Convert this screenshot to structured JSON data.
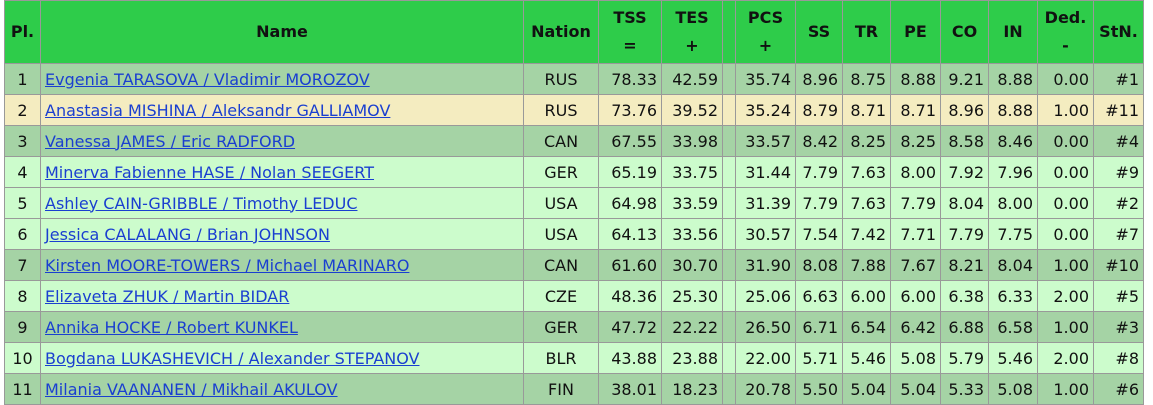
{
  "table": {
    "columns": [
      [
        "Pl."
      ],
      [
        "Name"
      ],
      [
        "Nation"
      ],
      [
        "TSS",
        "="
      ],
      [
        "TES",
        "+"
      ],
      [
        "PCS",
        "+"
      ],
      [
        "SS"
      ],
      [
        "TR"
      ],
      [
        "PE"
      ],
      [
        "CO"
      ],
      [
        "IN"
      ],
      [
        "Ded.",
        "-"
      ],
      [
        "StN."
      ]
    ],
    "rows": [
      [
        "1",
        "Evgenia TARASOVA / Vladimir MOROZOV",
        "RUS",
        "78.33",
        "42.59",
        "35.74",
        "8.96",
        "8.75",
        "8.88",
        "9.21",
        "8.88",
        "0.00",
        "#1"
      ],
      [
        "2",
        "Anastasia MISHINA / Aleksandr GALLIAMOV",
        "RUS",
        "73.76",
        "39.52",
        "35.24",
        "8.79",
        "8.71",
        "8.71",
        "8.96",
        "8.88",
        "1.00",
        "#11"
      ],
      [
        "3",
        "Vanessa JAMES / Eric RADFORD",
        "CAN",
        "67.55",
        "33.98",
        "33.57",
        "8.42",
        "8.25",
        "8.25",
        "8.58",
        "8.46",
        "0.00",
        "#4"
      ],
      [
        "4",
        "Minerva Fabienne HASE / Nolan SEEGERT",
        "GER",
        "65.19",
        "33.75",
        "31.44",
        "7.79",
        "7.63",
        "8.00",
        "7.92",
        "7.96",
        "0.00",
        "#9"
      ],
      [
        "5",
        "Ashley CAIN-GRIBBLE / Timothy LEDUC",
        "USA",
        "64.98",
        "33.59",
        "31.39",
        "7.79",
        "7.63",
        "7.79",
        "8.04",
        "8.00",
        "0.00",
        "#2"
      ],
      [
        "6",
        "Jessica CALALANG / Brian JOHNSON",
        "USA",
        "64.13",
        "33.56",
        "30.57",
        "7.54",
        "7.42",
        "7.71",
        "7.79",
        "7.75",
        "0.00",
        "#7"
      ],
      [
        "7",
        "Kirsten MOORE-TOWERS / Michael MARINARO",
        "CAN",
        "61.60",
        "30.70",
        "31.90",
        "8.08",
        "7.88",
        "7.67",
        "8.21",
        "8.04",
        "1.00",
        "#10"
      ],
      [
        "8",
        "Elizaveta ZHUK / Martin BIDAR",
        "CZE",
        "48.36",
        "25.30",
        "25.06",
        "6.63",
        "6.00",
        "6.00",
        "6.38",
        "6.33",
        "2.00",
        "#5"
      ],
      [
        "9",
        "Annika HOCKE / Robert KUNKEL",
        "GER",
        "47.72",
        "22.22",
        "26.50",
        "6.71",
        "6.54",
        "6.42",
        "6.88",
        "6.58",
        "1.00",
        "#3"
      ],
      [
        "10",
        "Bogdana LUKASHEVICH / Alexander STEPANOV",
        "BLR",
        "43.88",
        "23.88",
        "22.00",
        "5.71",
        "5.46",
        "5.08",
        "5.79",
        "5.46",
        "2.00",
        "#8"
      ],
      [
        "11",
        "Milania VAANANEN / Mikhail AKULOV",
        "FIN",
        "38.01",
        "18.23",
        "20.78",
        "5.50",
        "5.04",
        "5.04",
        "5.33",
        "5.08",
        "1.00",
        "#6"
      ]
    ]
  }
}
